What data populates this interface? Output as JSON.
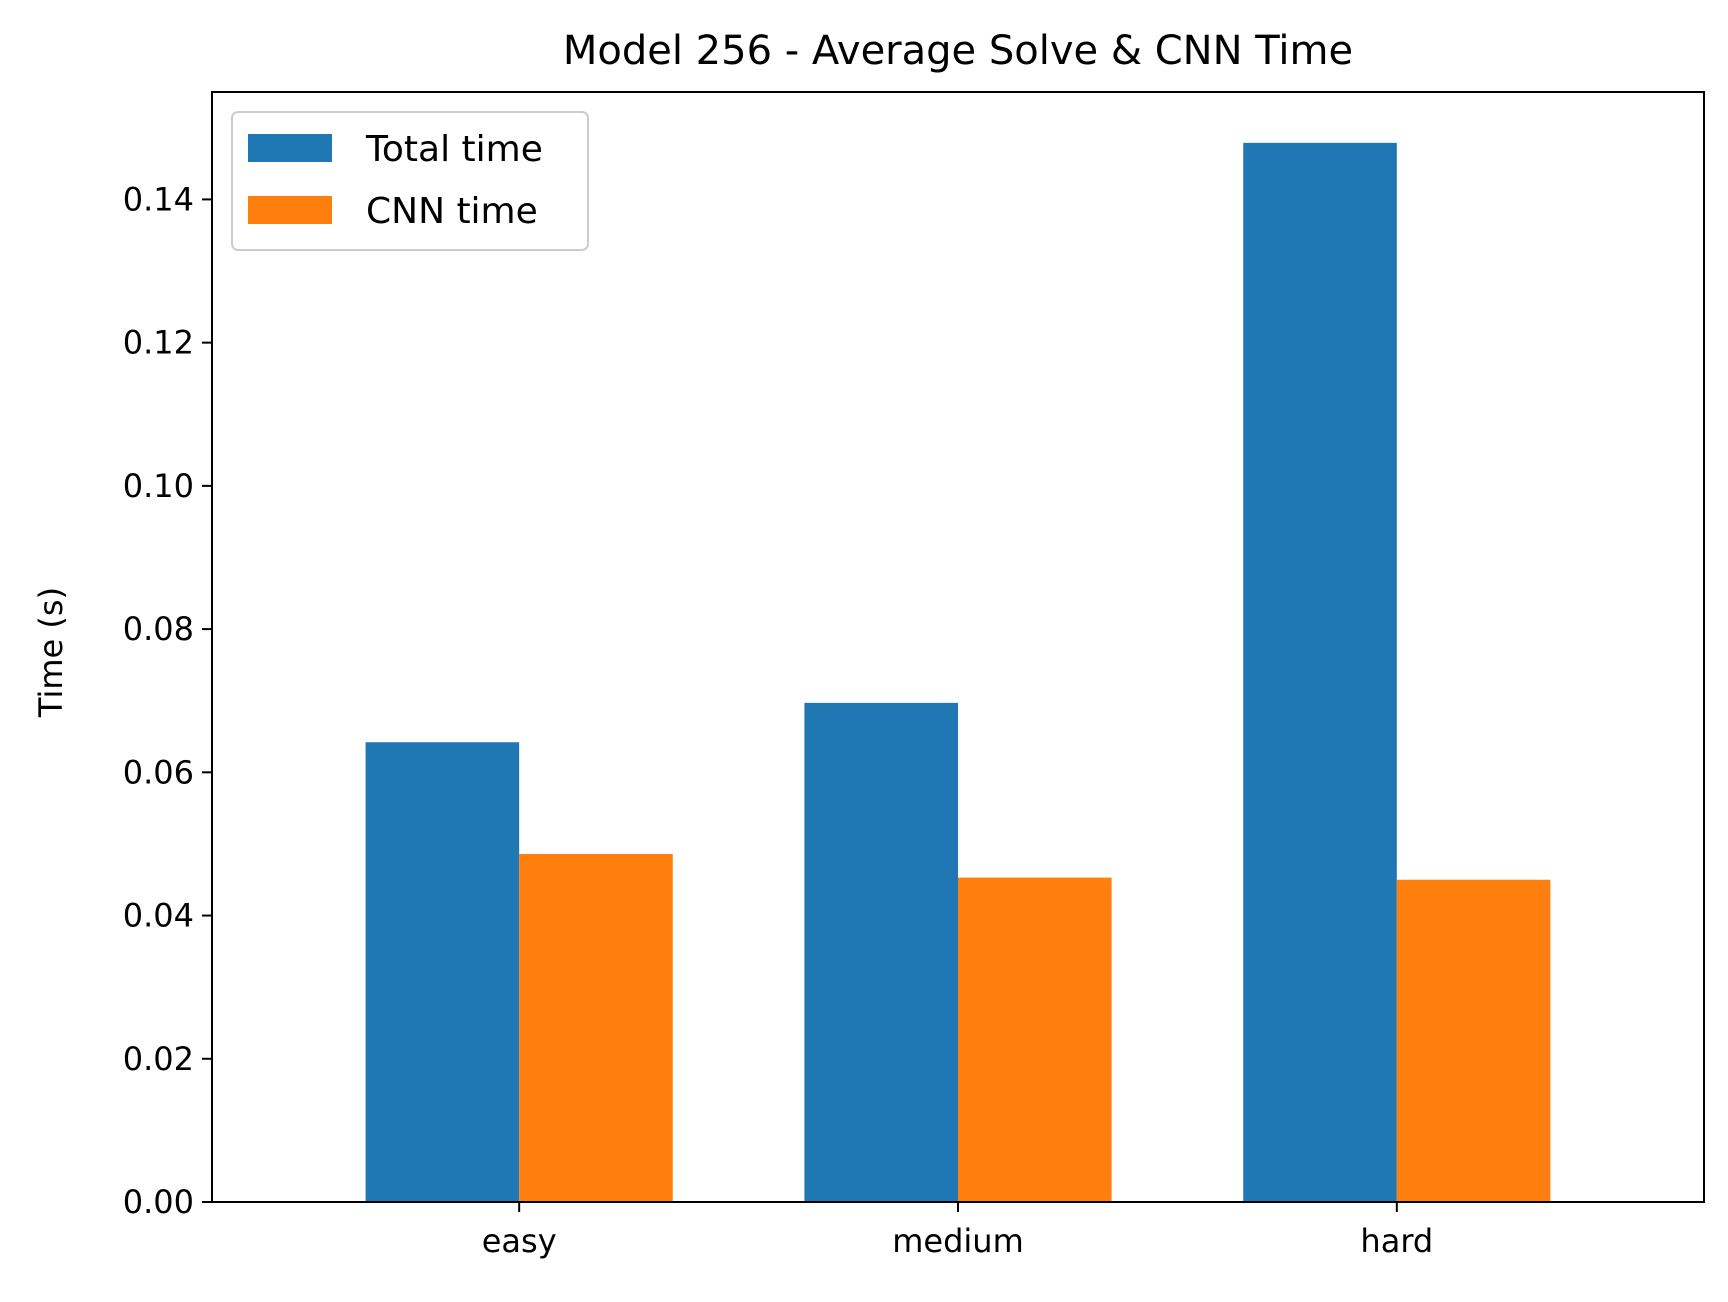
{
  "chart_data": {
    "type": "bar",
    "title": "Model 256 - Average Solve & CNN Time",
    "xlabel": "",
    "ylabel": "Time (s)",
    "categories": [
      "easy",
      "medium",
      "hard"
    ],
    "series": [
      {
        "name": "Total time",
        "color": "#1f77b4",
        "values": [
          0.0642,
          0.0697,
          0.1479
        ]
      },
      {
        "name": "CNN time",
        "color": "#ff7f0e",
        "values": [
          0.0486,
          0.0453,
          0.045
        ]
      }
    ],
    "ylim": [
      0,
      0.155
    ],
    "yticks": [
      "0.00",
      "0.02",
      "0.04",
      "0.06",
      "0.08",
      "0.10",
      "0.12",
      "0.14"
    ],
    "grid": false,
    "legend": {
      "placement": "upper-left"
    }
  }
}
